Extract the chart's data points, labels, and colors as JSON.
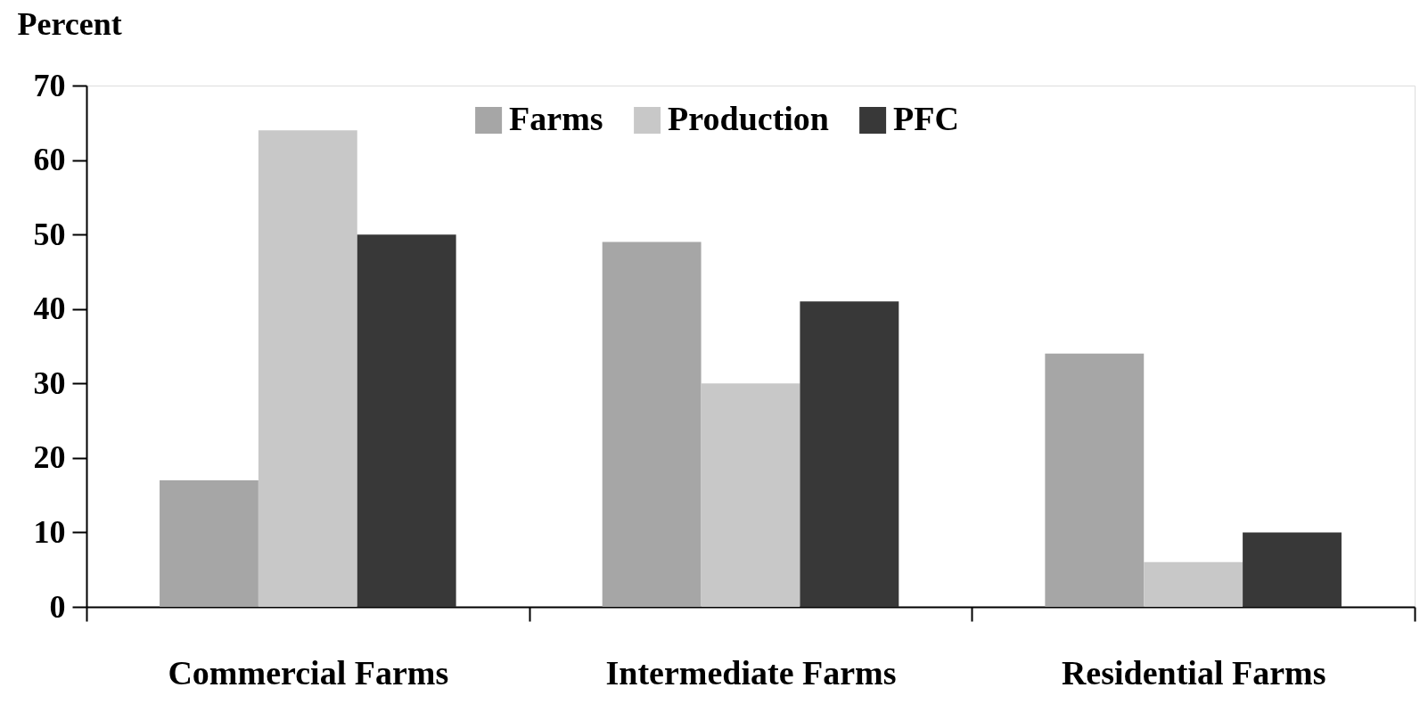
{
  "chart_data": {
    "type": "bar",
    "ylabel": "Percent",
    "categories": [
      "Commercial Farms",
      "Intermediate Farms",
      "Residential Farms"
    ],
    "series": [
      {
        "name": "Farms",
        "color": "#a6a6a6",
        "values": [
          17,
          49,
          34
        ]
      },
      {
        "name": "Production",
        "color": "#c8c8c8",
        "values": [
          64,
          30,
          6
        ]
      },
      {
        "name": "PFC",
        "color": "#383838",
        "values": [
          50,
          41,
          10
        ]
      }
    ],
    "ylim": [
      0,
      70
    ],
    "yticks": [
      0,
      10,
      20,
      30,
      40,
      50,
      60,
      70
    ],
    "grid": false,
    "legend": "top"
  }
}
